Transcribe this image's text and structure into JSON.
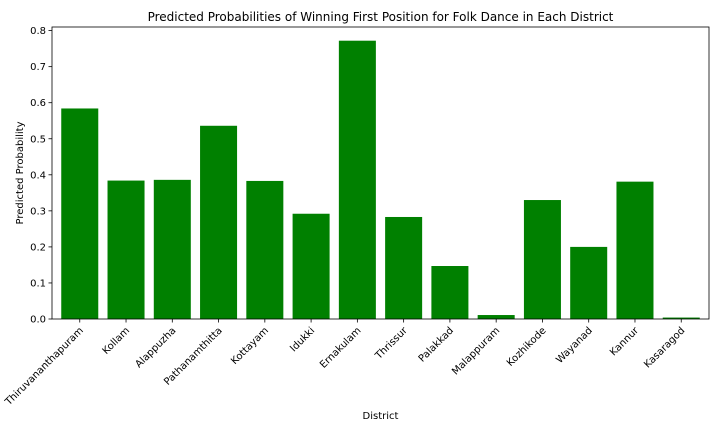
{
  "chart_data": {
    "type": "bar",
    "title": "Predicted Probabilities of Winning First Position for Folk Dance in Each District",
    "xlabel": "District",
    "ylabel": "Predicted Probability",
    "categories": [
      "Thiruvananthapuram",
      "Kollam",
      "Alappuzha",
      "Pathanamthitta",
      "Kottayam",
      "Idukki",
      "Ernakulam",
      "Thrissur",
      "Palakkad",
      "Malappuram",
      "Kozhikode",
      "Wayanad",
      "Kannur",
      "Kasaragod"
    ],
    "values": [
      0.584,
      0.384,
      0.386,
      0.536,
      0.383,
      0.292,
      0.772,
      0.283,
      0.147,
      0.011,
      0.33,
      0.2,
      0.381,
      0.004
    ],
    "ylim": [
      0,
      0.81
    ],
    "yticks": [
      0.0,
      0.1,
      0.2,
      0.3,
      0.4,
      0.5,
      0.6,
      0.7,
      0.8
    ],
    "bar_color": "#008000",
    "grid": false,
    "legend": "none"
  }
}
